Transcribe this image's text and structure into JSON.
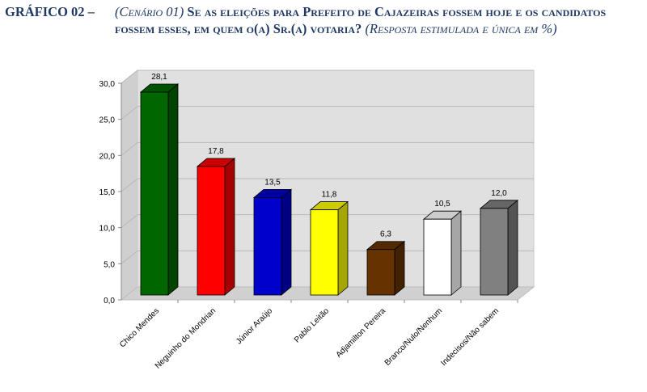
{
  "title": {
    "label": "GRÁFICO 02 –",
    "scenario": "(Cenário 01)",
    "question": "Se as eleições para Prefeito de Cajazeiras fossem hoje e os candidatos fossem esses, em quem o(a) Sr.(a) votaria?",
    "note": "(Resposta estimulada e única em %)"
  },
  "chart_data": {
    "type": "bar",
    "title": "Se as eleições para Prefeito de Cajazeiras fossem hoje e os candidatos fossem esses, em quem o(a) Sr.(a) votaria?",
    "xlabel": "",
    "ylabel": "",
    "ylim": [
      0,
      30
    ],
    "yticks": [
      "0,0",
      "5,0",
      "10,0",
      "15,0",
      "20,0",
      "25,0",
      "30,0"
    ],
    "grid": true,
    "categories": [
      "Chico Mendes",
      "Neguinho do Mondrian",
      "Júnior Araújo",
      "Pablo Leitão",
      "Adjamilton Pereira",
      "Branco/Nulo/Nenhum",
      "Indecisos/Não sabem"
    ],
    "values": [
      28.1,
      17.8,
      13.5,
      11.8,
      6.3,
      10.5,
      12.0
    ],
    "labels": [
      "28,1",
      "17,8",
      "13,5",
      "11,8",
      "6,3",
      "10,5",
      "12,0"
    ],
    "colors": [
      "#006600",
      "#ff0000",
      "#0000cc",
      "#ffff00",
      "#663300",
      "#ffffff",
      "#808080"
    ]
  }
}
